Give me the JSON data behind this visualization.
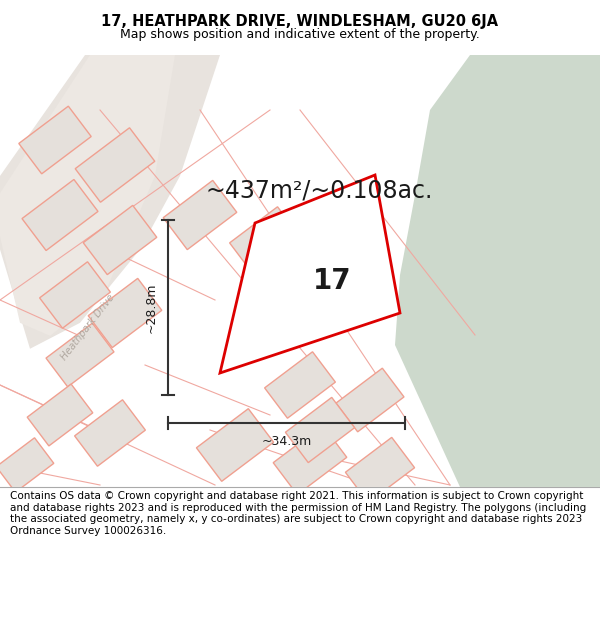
{
  "title": "17, HEATHPARK DRIVE, WINDLESHAM, GU20 6JA",
  "subtitle": "Map shows position and indicative extent of the property.",
  "area_text": "~437m²/~0.108ac.",
  "label_number": "17",
  "dim_width": "~34.3m",
  "dim_height": "~28.8m",
  "road_label": "Heathpark Drive",
  "footer": "Contains OS data © Crown copyright and database right 2021. This information is subject to Crown copyright and database rights 2023 and is reproduced with the permission of HM Land Registry. The polygons (including the associated geometry, namely x, y co-ordinates) are subject to Crown copyright and database rights 2023 Ordnance Survey 100026316.",
  "map_bg": "#f0ebe5",
  "green_area_color": "#cdd9cc",
  "plot_stroke": "#dd0000",
  "plot_fill": "#ffffff",
  "building_fill": "#e5e0db",
  "building_stroke": "#f0a090",
  "road_fill": "#e8e3de",
  "dim_line_color": "#333333",
  "title_fontsize": 10.5,
  "subtitle_fontsize": 9,
  "area_fontsize": 17,
  "number_fontsize": 20,
  "footer_fontsize": 7.5,
  "title_weight": "normal"
}
